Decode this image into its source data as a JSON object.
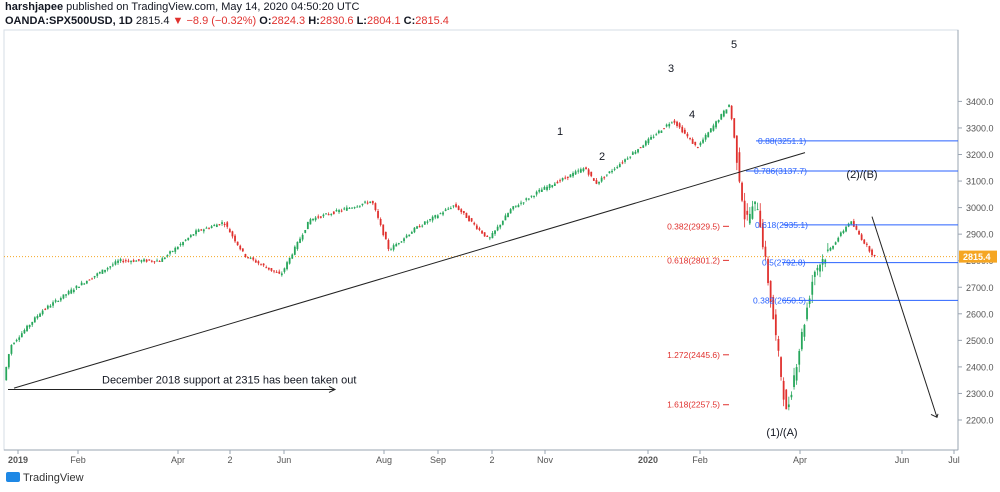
{
  "header": {
    "author": "harshjapee",
    "published_text": "published on TradingView.com, May 14, 2020 04:50:20 UTC",
    "symbol": "OANDA:SPX500USD, 1D",
    "last": "2815.4",
    "change_icon": "down-triangle",
    "change": "−8.9 (−0.32%)",
    "o_label": "O:",
    "o": "2824.3",
    "h_label": "H:",
    "h": "2830.6",
    "l_label": "L:",
    "l": "2804.1",
    "c_label": "C:",
    "c": "2815.4"
  },
  "footer": {
    "brand": "TradingView"
  },
  "colors": {
    "up": "#26a65b",
    "down": "#e0312e",
    "fib_blue": "#2962ff",
    "fib_red": "#e0312e",
    "price_line": "#f5a623"
  },
  "chart_data": {
    "type": "candlestick",
    "title": "OANDA:SPX500USD, 1D",
    "y_axis": {
      "ticks": [
        2200,
        2300,
        2400,
        2500,
        2600,
        2700,
        2800,
        2900,
        3000,
        3100,
        3200,
        3300,
        3400
      ]
    },
    "x_axis": {
      "ticks": [
        "2019",
        "Feb",
        "Apr",
        "2",
        "Jun",
        "Aug",
        "Sep",
        "2",
        "Nov",
        "2020",
        "Feb",
        "Apr",
        "Jun",
        "Jul"
      ]
    },
    "last_price_label": "2815.4",
    "price_path": [
      [
        "2018-12-24",
        2350
      ],
      [
        "2018-12-28",
        2480
      ],
      [
        "2019-01-15",
        2610
      ],
      [
        "2019-02-04",
        2700
      ],
      [
        "2019-03-01",
        2800
      ],
      [
        "2019-03-25",
        2800
      ],
      [
        "2019-04-15",
        2910
      ],
      [
        "2019-05-01",
        2945
      ],
      [
        "2019-05-13",
        2820
      ],
      [
        "2019-06-03",
        2745
      ],
      [
        "2019-06-20",
        2955
      ],
      [
        "2019-07-26",
        3025
      ],
      [
        "2019-08-05",
        2840
      ],
      [
        "2019-08-20",
        2920
      ],
      [
        "2019-09-12",
        3010
      ],
      [
        "2019-10-02",
        2880
      ],
      [
        "2019-10-15",
        2995
      ],
      [
        "2019-11-01",
        3065
      ],
      [
        "2019-11-27",
        3150
      ],
      [
        "2019-12-03",
        3090
      ],
      [
        "2020-01-17",
        3330
      ],
      [
        "2020-01-31",
        3225
      ],
      [
        "2020-02-19",
        3390
      ],
      [
        "2020-02-28",
        2950
      ],
      [
        "2020-03-06",
        3020
      ],
      [
        "2020-03-23",
        2220
      ],
      [
        "2020-04-08",
        2760
      ],
      [
        "2020-04-29",
        2950
      ],
      [
        "2020-05-07",
        2870
      ],
      [
        "2020-05-13",
        2815
      ]
    ],
    "fib_levels": [
      {
        "label": "0.88(3251.1)",
        "value": 3251.1,
        "color": "blue"
      },
      {
        "label": "0.786(3137.7)",
        "value": 3137.7,
        "color": "blue"
      },
      {
        "label": "0.618(2935.1)",
        "value": 2935.1,
        "color": "blue"
      },
      {
        "label": "0.5(2792.8)",
        "value": 2792.8,
        "color": "blue"
      },
      {
        "label": "0.382(2650.5)",
        "value": 2650.5,
        "color": "blue"
      },
      {
        "label": "0.382(2929.5)",
        "value": 2929.5,
        "color": "red"
      },
      {
        "label": "0.618(2801.2)",
        "value": 2801.2,
        "color": "red"
      },
      {
        "label": "1.272(2445.6)",
        "value": 2445.6,
        "color": "red"
      },
      {
        "label": "1.618(2257.5)",
        "value": 2257.5,
        "color": "red"
      }
    ],
    "wave_labels": [
      "1",
      "2",
      "3",
      "4",
      "5",
      "(1)/(A)",
      "(2)/(B)"
    ],
    "annotation": "December 2018 support at 2315 has been taken out"
  }
}
